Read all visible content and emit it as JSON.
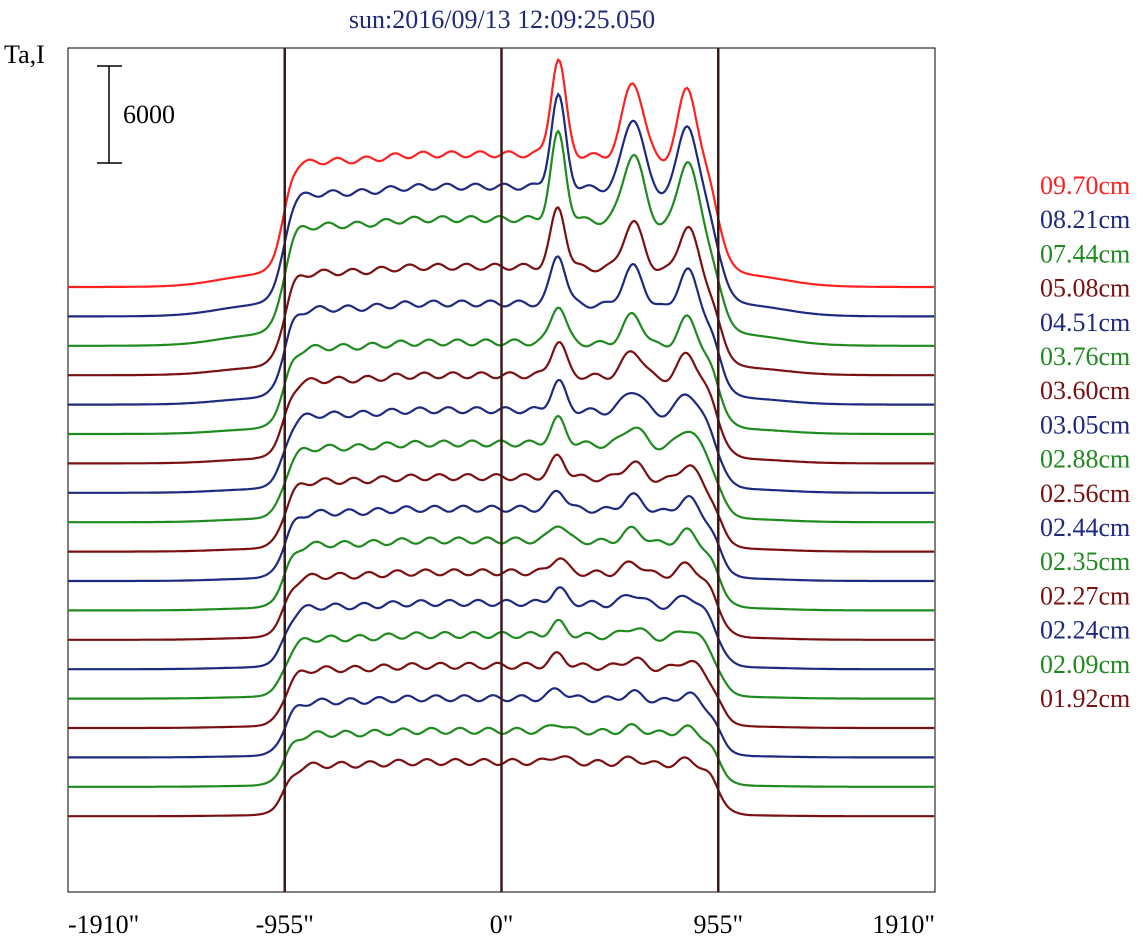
{
  "chart_data": {
    "type": "line",
    "title": "sun:2016/09/13 12:09:25.050",
    "ylabel": "Ta,I",
    "xlabel": "",
    "x_tick_labels": [
      "-1910\"",
      "-955\"",
      "0\"",
      "955\"",
      "1910\""
    ],
    "x_ticks": [
      -1910,
      -955,
      0,
      955,
      1910
    ],
    "xlim": [
      -1910,
      1910
    ],
    "vertical_lines": [
      -955,
      0,
      955
    ],
    "scale_bar": {
      "label": "6000",
      "value": 6000
    },
    "series": [
      {
        "name": "09.70cm",
        "color": "#ff2020",
        "amp": 1.0
      },
      {
        "name": "08.21cm",
        "color": "#1e2a80",
        "amp": 0.95
      },
      {
        "name": "07.44cm",
        "color": "#1f8a1f",
        "amp": 0.9
      },
      {
        "name": "05.08cm",
        "color": "#7a1010",
        "amp": 0.62
      },
      {
        "name": "04.51cm",
        "color": "#1e2a80",
        "amp": 0.52
      },
      {
        "name": "03.76cm",
        "color": "#1f8a1f",
        "amp": 0.4
      },
      {
        "name": "03.60cm",
        "color": "#7a1010",
        "amp": 0.36
      },
      {
        "name": "03.05cm",
        "color": "#1e2a80",
        "amp": 0.3
      },
      {
        "name": "02.88cm",
        "color": "#1f8a1f",
        "amp": 0.26
      },
      {
        "name": "02.56cm",
        "color": "#7a1010",
        "amp": 0.22
      },
      {
        "name": "02.44cm",
        "color": "#1e2a80",
        "amp": 0.2
      },
      {
        "name": "02.35cm",
        "color": "#1f8a1f",
        "amp": 0.18
      },
      {
        "name": "02.27cm",
        "color": "#7a1010",
        "amp": 0.16
      },
      {
        "name": "02.24cm",
        "color": "#1e2a80",
        "amp": 0.15
      },
      {
        "name": "02.09cm",
        "color": "#1f8a1f",
        "amp": 0.13
      },
      {
        "name": "01.92cm",
        "color": "#7a1010",
        "amp": 0.12
      },
      {
        "name": "",
        "color": "#1e2a80",
        "amp": 0.1
      },
      {
        "name": "",
        "color": "#1f8a1f",
        "amp": 0.08
      },
      {
        "name": "",
        "color": "#7a1010",
        "amp": 0.07
      }
    ]
  }
}
